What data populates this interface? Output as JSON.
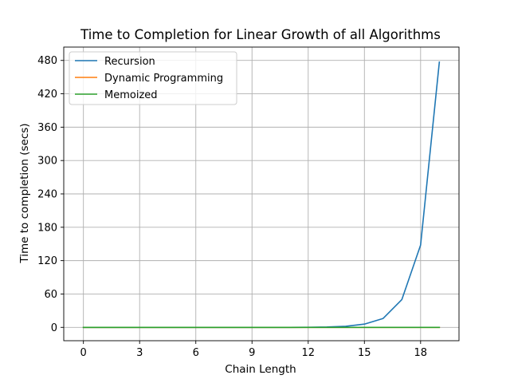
{
  "chart_data": {
    "type": "line",
    "title": "Time to Completion for Linear Growth of all Algorithms",
    "xlabel": "Chain Length",
    "ylabel": "Time to completion (secs)",
    "xlim": [
      -1.05,
      20.05
    ],
    "ylim": [
      -24,
      504
    ],
    "xticks": [
      0,
      3,
      6,
      9,
      12,
      15,
      18
    ],
    "yticks": [
      0,
      60,
      120,
      180,
      240,
      300,
      360,
      420,
      480
    ],
    "grid": true,
    "legend_position": "upper-left",
    "x": [
      0,
      1,
      2,
      3,
      4,
      5,
      6,
      7,
      8,
      9,
      10,
      11,
      12,
      13,
      14,
      15,
      16,
      17,
      18,
      19
    ],
    "series": [
      {
        "name": "Recursion",
        "color": "#1f77b4",
        "values": [
          0,
          0,
          0,
          0,
          0,
          0,
          0,
          0,
          0,
          0,
          0,
          0,
          0.2,
          0.6,
          1.9,
          5.8,
          16,
          50,
          148,
          477
        ]
      },
      {
        "name": "Dynamic Programming",
        "color": "#ff7f0e",
        "values": [
          0,
          0,
          0,
          0,
          0,
          0,
          0,
          0,
          0,
          0,
          0,
          0,
          0,
          0,
          0,
          0,
          0,
          0,
          0,
          0
        ]
      },
      {
        "name": "Memoized",
        "color": "#2ca02c",
        "values": [
          0,
          0,
          0,
          0,
          0,
          0,
          0,
          0,
          0,
          0,
          0,
          0,
          0,
          0,
          0,
          0,
          0,
          0,
          0,
          0
        ]
      }
    ]
  }
}
